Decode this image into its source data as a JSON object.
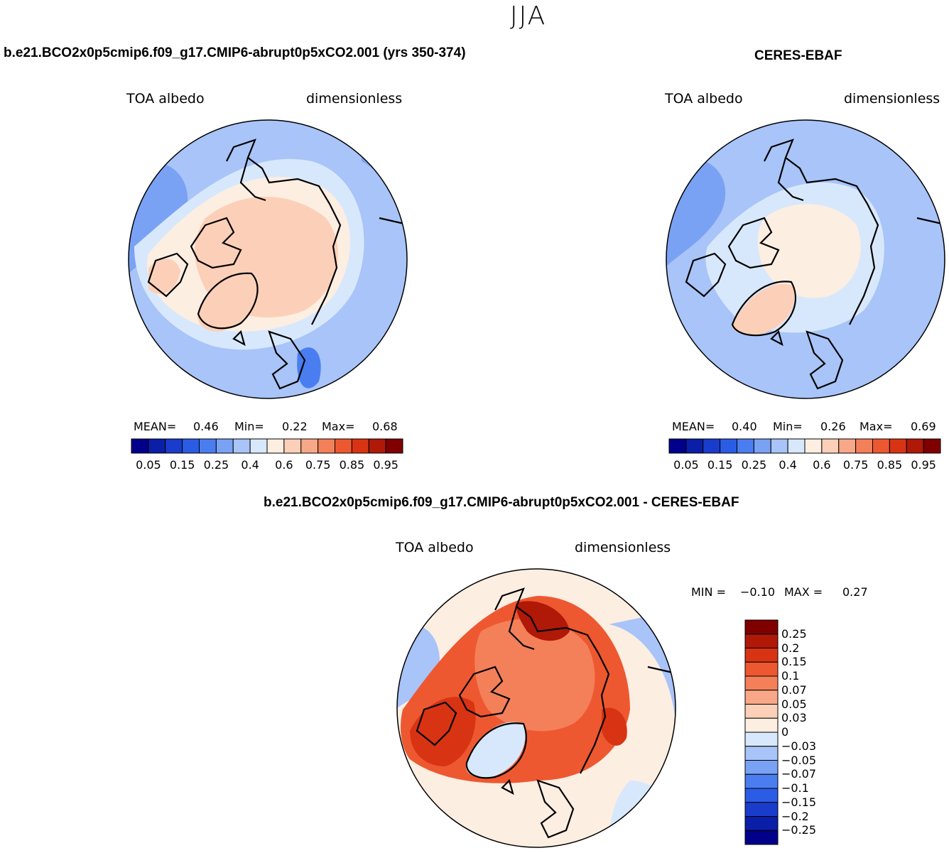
{
  "season": "JJA",
  "panels": {
    "model": {
      "title": "b.e21.BCO2x0p5cmip6.f09_g17.CMIP6-abrupt0p5xCO2.001 (yrs 350-374)",
      "variable": "TOA albedo",
      "units": "dimensionless",
      "stats": {
        "mean_label": "MEAN=",
        "mean": "0.46",
        "min_label": "Min=",
        "min": "0.22",
        "max_label": "Max=",
        "max": "0.68"
      }
    },
    "obs": {
      "title": "CERES-EBAF",
      "variable": "TOA albedo",
      "units": "dimensionless",
      "stats": {
        "mean_label": "MEAN=",
        "mean": "0.40",
        "min_label": "Min=",
        "min": "0.26",
        "max_label": "Max=",
        "max": "0.69"
      }
    },
    "diff": {
      "title": "b.e21.BCO2x0p5cmip6.f09_g17.CMIP6-abrupt0p5xCO2.001 - CERES-EBAF",
      "variable": "TOA albedo",
      "units": "dimensionless",
      "stats": {
        "min_label": "MIN =",
        "min": "−0.10",
        "max_label": "MAX =",
        "max": "0.27"
      }
    }
  },
  "colorbars": {
    "abs": {
      "colors": [
        "#00008b",
        "#0a1ea8",
        "#1a3ccc",
        "#2a5ce6",
        "#4a7ef0",
        "#7aa2f4",
        "#a8c4f8",
        "#d8e8fc",
        "#fdeee2",
        "#fcd0b8",
        "#f8a888",
        "#f4805a",
        "#ee5830",
        "#d83414",
        "#b01808",
        "#800000"
      ],
      "tick_labels": [
        "0.05",
        "0.15",
        "0.25",
        "0.4",
        "0.6",
        "0.75",
        "0.85",
        "0.95"
      ]
    },
    "diff": {
      "colors": [
        "#800000",
        "#b01808",
        "#d83414",
        "#ee5830",
        "#f4805a",
        "#f8a888",
        "#fcd0b8",
        "#fdeee2",
        "#d8e8fc",
        "#a8c4f8",
        "#7aa2f4",
        "#4a7ef0",
        "#2a5ce6",
        "#1a3ccc",
        "#0a1ea8",
        "#00008b"
      ],
      "tick_labels": [
        "0.25",
        "0.2",
        "0.15",
        "0.1",
        "0.07",
        "0.05",
        "0.03",
        "0",
        "−0.03",
        "−0.05",
        "−0.07",
        "−0.1",
        "−0.15",
        "−0.2",
        "−0.25"
      ]
    }
  },
  "colors": {
    "ocean_blue": "#a8c4f8",
    "light_blue": "#d8e8fc",
    "mid_blue": "#7aa2f4",
    "peach": "#fcd0b8",
    "cream": "#fdeee2",
    "orange": "#ee5830",
    "red": "#d83414",
    "dark_red": "#b01808",
    "coast": "#000000"
  }
}
